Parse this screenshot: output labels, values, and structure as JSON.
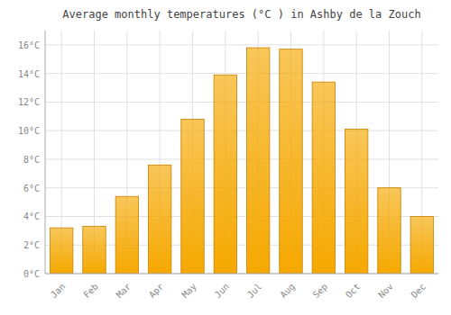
{
  "chart_data": {
    "type": "bar",
    "title": "Average monthly temperatures (°C ) in Ashby de la Zouch",
    "categories": [
      "Jan",
      "Feb",
      "Mar",
      "Apr",
      "May",
      "Jun",
      "Jul",
      "Aug",
      "Sep",
      "Oct",
      "Nov",
      "Dec"
    ],
    "values": [
      3.2,
      3.3,
      5.4,
      7.6,
      10.8,
      13.9,
      15.8,
      15.7,
      13.4,
      10.1,
      6.0,
      4.0
    ],
    "color": "#F5A800",
    "ylim": [
      0,
      17
    ],
    "yticks": [
      {
        "value": 0,
        "label": "0°C"
      },
      {
        "value": 2,
        "label": "2°C"
      },
      {
        "value": 4,
        "label": "4°C"
      },
      {
        "value": 6,
        "label": "6°C"
      },
      {
        "value": 8,
        "label": "8°C"
      },
      {
        "value": 10,
        "label": "10°C"
      },
      {
        "value": 12,
        "label": "12°C"
      },
      {
        "value": 14,
        "label": "14°C"
      },
      {
        "value": 16,
        "label": "16°C"
      }
    ],
    "grid": true
  }
}
